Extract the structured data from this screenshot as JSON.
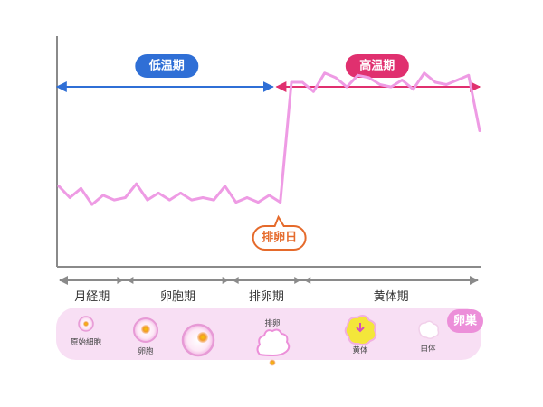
{
  "colors": {
    "low_phase": "#2f6fd6",
    "high_phase": "#e0306f",
    "temperature_line": "#ee9be4",
    "ovulation_day": "#e56a2b",
    "axis": "#8a8a8a",
    "ovary_band": "#f8dff4",
    "ovary_badge": "#ec8fd9"
  },
  "chart_data": {
    "type": "line",
    "title": "",
    "xlabel": "",
    "ylabel": "",
    "x": [
      1,
      2,
      3,
      4,
      5,
      6,
      7,
      8,
      9,
      10,
      11,
      12,
      13,
      14,
      15,
      16,
      17,
      18,
      19,
      20,
      21,
      22,
      23,
      24,
      25,
      26,
      27,
      28,
      29,
      30,
      31,
      32,
      33,
      34,
      35,
      36,
      37,
      38,
      39
    ],
    "ylim": [
      0,
      10
    ],
    "series": [
      {
        "values": [
          3.5,
          3.0,
          3.4,
          2.7,
          3.1,
          2.9,
          3.0,
          3.6,
          2.9,
          3.2,
          2.9,
          3.2,
          2.9,
          3.0,
          2.9,
          3.5,
          2.8,
          3.0,
          2.8,
          3.1,
          2.8,
          8.0,
          8.0,
          7.6,
          8.4,
          8.2,
          7.8,
          8.3,
          8.2,
          7.9,
          7.8,
          8.1,
          7.7,
          8.4,
          8.0,
          7.9,
          8.1,
          8.3,
          5.9
        ]
      }
    ],
    "phases_top": [
      {
        "label": "低温期",
        "from_day": 1,
        "to_day": 20.5
      },
      {
        "label": "高温期",
        "from_day": 20.5,
        "to_day": 39
      }
    ],
    "ovulation_annotation": {
      "label": "排卵日",
      "day": 20.5
    },
    "grid": false
  },
  "cycle_phases": [
    {
      "label": "月経期",
      "from_day": 1,
      "to_day": 7
    },
    {
      "label": "卵胞期",
      "from_day": 7,
      "to_day": 16.5
    },
    {
      "label": "排卵期",
      "from_day": 16.5,
      "to_day": 23
    },
    {
      "label": "黄体期",
      "from_day": 23,
      "to_day": 39
    }
  ],
  "ovary": {
    "badge": "卵巣",
    "stages": [
      {
        "icon": "primordial-follicle-icon",
        "label": "原始細胞"
      },
      {
        "icon": "follicle-icon",
        "label": "卵胞"
      },
      {
        "icon": "mature-follicle-icon",
        "label": ""
      },
      {
        "icon": "ovulation-icon",
        "label": "排卵"
      },
      {
        "icon": "corpus-luteum-icon",
        "label": "黄体"
      },
      {
        "icon": "corpus-albicans-icon",
        "label": "白体"
      }
    ]
  }
}
